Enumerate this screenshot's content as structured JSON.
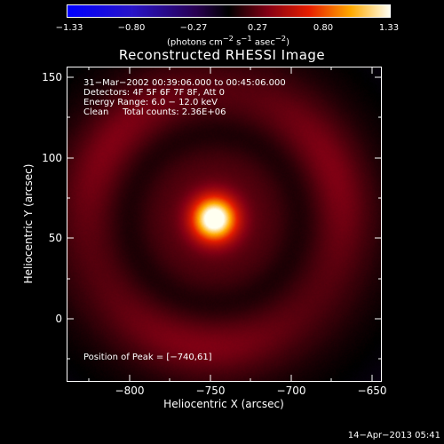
{
  "colorbar": {
    "ticks": [
      "−1.33",
      "−0.80",
      "−0.27",
      "0.27",
      "0.80",
      "1.33"
    ],
    "unit_pre": "(photons cm",
    "unit_exp1": "−2",
    "unit_mid1": " s",
    "unit_exp2": "−1",
    "unit_mid2": " asec",
    "unit_exp3": "−2",
    "unit_post": ")"
  },
  "title": "Reconstructed RHESSI Image",
  "annotations": {
    "time_range": "31−Mar−2002 00:39:06.000 to 00:45:06.000",
    "detectors": "Detectors: 4F 5F 6F 7F 8F, Att 0",
    "energy": "Energy Range: 6.0 − 12.0 keV",
    "clean": "Clean     Total counts: 2.36E+06",
    "peak": "Position of Peak = [−740,61]"
  },
  "axes": {
    "xlabel": "Heliocentric X (arcsec)",
    "ylabel": "Heliocentric Y (arcsec)",
    "xticks": [
      "−800",
      "−750",
      "−700",
      "−650"
    ],
    "yticks": [
      "150",
      "100",
      "50",
      "0"
    ]
  },
  "timestamp": "14−Apr−2013 05:41"
}
